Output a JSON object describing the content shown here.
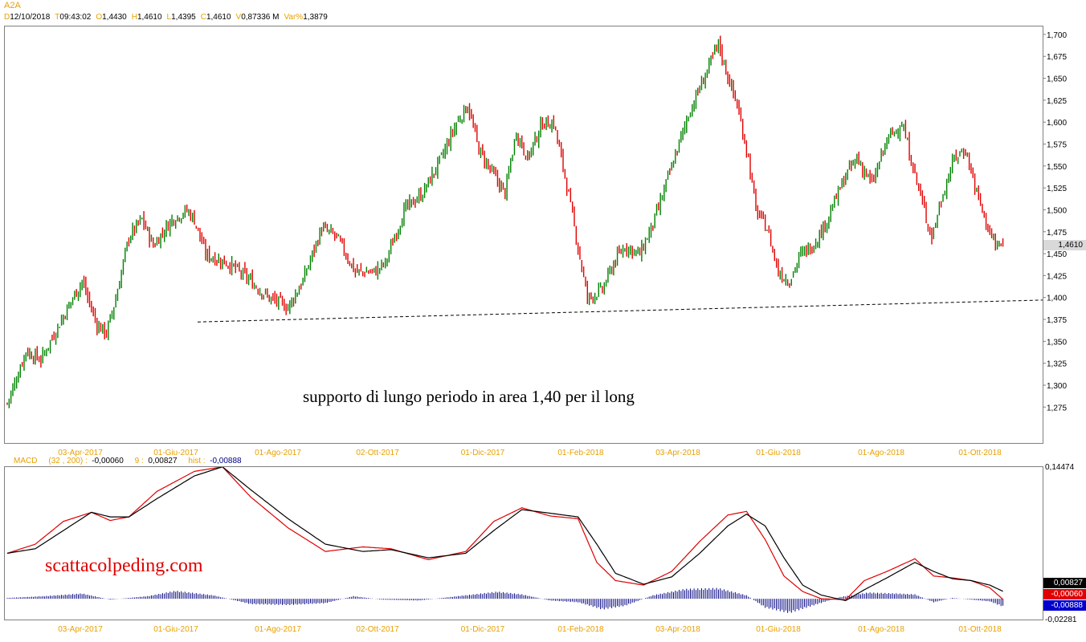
{
  "header": {
    "symbol": "A2A",
    "fields": [
      {
        "key": "D",
        "value": "12/10/2018"
      },
      {
        "key": "T",
        "value": "09:43:02"
      },
      {
        "key": "O",
        "value": "1,4430"
      },
      {
        "key": "H",
        "value": "1,4610"
      },
      {
        "key": "L",
        "value": "1,4395"
      },
      {
        "key": "C",
        "value": "1,4610"
      },
      {
        "key": "V",
        "value": "0,87336 M"
      },
      {
        "key": "Var%",
        "value": "1,3879"
      }
    ]
  },
  "macd_header": {
    "name": "MACD",
    "params": "(32 , 200) :",
    "macd_value": "-0,00060",
    "signal_label": "9 :",
    "signal_value": "0,00827",
    "hist_label": "hist :",
    "hist_value": "-0,00888"
  },
  "price_badge": "1,4610",
  "macd_badges": {
    "signal": "0,00827",
    "macd": "-0,00060",
    "hist": "-0,00888"
  },
  "annotation": "supporto di lungo periodo in area 1,40 per il long",
  "watermark": "scattacolpeding.com",
  "colors": {
    "up": "#008000",
    "down": "#e00000",
    "signal": "#000000",
    "macd": "#e00000",
    "hist": "#000080",
    "axis_label": "#e8a000"
  },
  "chart_data": [
    {
      "type": "candlestick",
      "title": "A2A",
      "x_tick_labels": [
        "03-Apr-2017",
        "01-Giu-2017",
        "01-Ago-2017",
        "02-Ott-2017",
        "01-Dic-2017",
        "01-Feb-2018",
        "03-Apr-2018",
        "01-Giu-2018",
        "01-Ago-2018",
        "01-Ott-2018"
      ],
      "y_tick_labels": [
        "1,700",
        "1,675",
        "1,650",
        "1,625",
        "1,600",
        "1,575",
        "1,550",
        "1,525",
        "1,500",
        "1,475",
        "1,450",
        "1,425",
        "1,400",
        "1,375",
        "1,350",
        "1,325",
        "1,300",
        "1,275"
      ],
      "ylim": [
        1.235,
        1.71
      ],
      "anchors_close": [
        [
          0,
          1.28
        ],
        [
          10,
          1.34
        ],
        [
          18,
          1.33
        ],
        [
          30,
          1.38
        ],
        [
          40,
          1.42
        ],
        [
          43,
          1.4
        ],
        [
          48,
          1.37
        ],
        [
          53,
          1.36
        ],
        [
          58,
          1.4
        ],
        [
          65,
          1.47
        ],
        [
          72,
          1.49
        ],
        [
          78,
          1.46
        ],
        [
          88,
          1.49
        ],
        [
          96,
          1.5
        ],
        [
          100,
          1.49
        ],
        [
          106,
          1.45
        ],
        [
          118,
          1.44
        ],
        [
          130,
          1.42
        ],
        [
          140,
          1.4
        ],
        [
          150,
          1.39
        ],
        [
          158,
          1.42
        ],
        [
          168,
          1.48
        ],
        [
          176,
          1.47
        ],
        [
          186,
          1.43
        ],
        [
          196,
          1.43
        ],
        [
          202,
          1.44
        ],
        [
          212,
          1.5
        ],
        [
          222,
          1.52
        ],
        [
          232,
          1.56
        ],
        [
          240,
          1.6
        ],
        [
          246,
          1.62
        ],
        [
          252,
          1.57
        ],
        [
          260,
          1.54
        ],
        [
          266,
          1.52
        ],
        [
          272,
          1.59
        ],
        [
          278,
          1.56
        ],
        [
          286,
          1.6
        ],
        [
          292,
          1.6
        ],
        [
          298,
          1.54
        ],
        [
          304,
          1.47
        ],
        [
          310,
          1.4
        ],
        [
          318,
          1.41
        ],
        [
          324,
          1.44
        ],
        [
          330,
          1.46
        ],
        [
          338,
          1.45
        ],
        [
          346,
          1.49
        ],
        [
          352,
          1.53
        ],
        [
          358,
          1.57
        ],
        [
          364,
          1.61
        ],
        [
          370,
          1.64
        ],
        [
          376,
          1.67
        ],
        [
          380,
          1.69
        ],
        [
          384,
          1.66
        ],
        [
          390,
          1.62
        ],
        [
          396,
          1.56
        ],
        [
          400,
          1.5
        ],
        [
          406,
          1.48
        ],
        [
          412,
          1.43
        ],
        [
          418,
          1.42
        ],
        [
          424,
          1.45
        ],
        [
          430,
          1.46
        ],
        [
          436,
          1.48
        ],
        [
          442,
          1.51
        ],
        [
          448,
          1.54
        ],
        [
          454,
          1.56
        ],
        [
          462,
          1.53
        ],
        [
          470,
          1.58
        ],
        [
          478,
          1.6
        ],
        [
          484,
          1.55
        ],
        [
          490,
          1.5
        ],
        [
          494,
          1.47
        ],
        [
          500,
          1.52
        ],
        [
          506,
          1.56
        ],
        [
          512,
          1.57
        ],
        [
          518,
          1.52
        ],
        [
          524,
          1.48
        ],
        [
          528,
          1.46
        ],
        [
          532,
          1.46
        ]
      ],
      "support_line": {
        "y_start": 1.373,
        "y_end": 1.398,
        "style": "dashed"
      },
      "last_price": 1.461
    },
    {
      "type": "line",
      "title": "MACD",
      "y_tick_labels": [
        "0,14474",
        "-0,02281"
      ],
      "ylim": [
        -0.02281,
        0.14474
      ],
      "series": [
        {
          "name": "signal",
          "anchors": [
            [
              0,
              0.05
            ],
            [
              15,
              0.055
            ],
            [
              30,
              0.075
            ],
            [
              45,
              0.095
            ],
            [
              55,
              0.09
            ],
            [
              65,
              0.09
            ],
            [
              80,
              0.11
            ],
            [
              100,
              0.135
            ],
            [
              115,
              0.145
            ],
            [
              130,
              0.12
            ],
            [
              150,
              0.088
            ],
            [
              170,
              0.06
            ],
            [
              190,
              0.052
            ],
            [
              205,
              0.054
            ],
            [
              225,
              0.045
            ],
            [
              245,
              0.05
            ],
            [
              260,
              0.075
            ],
            [
              275,
              0.098
            ],
            [
              290,
              0.094
            ],
            [
              305,
              0.09
            ],
            [
              315,
              0.06
            ],
            [
              325,
              0.028
            ],
            [
              340,
              0.016
            ],
            [
              355,
              0.024
            ],
            [
              370,
              0.05
            ],
            [
              385,
              0.08
            ],
            [
              395,
              0.093
            ],
            [
              405,
              0.08
            ],
            [
              415,
              0.045
            ],
            [
              425,
              0.015
            ],
            [
              435,
              0.004
            ],
            [
              448,
              -0.002
            ],
            [
              458,
              0.01
            ],
            [
              470,
              0.023
            ],
            [
              485,
              0.04
            ],
            [
              495,
              0.03
            ],
            [
              505,
              0.022
            ],
            [
              515,
              0.02
            ],
            [
              525,
              0.015
            ],
            [
              532,
              0.00827
            ]
          ]
        },
        {
          "name": "macd",
          "anchors": [
            [
              0,
              0.05
            ],
            [
              15,
              0.06
            ],
            [
              30,
              0.085
            ],
            [
              45,
              0.095
            ],
            [
              55,
              0.086
            ],
            [
              65,
              0.09
            ],
            [
              80,
              0.118
            ],
            [
              100,
              0.14
            ],
            [
              115,
              0.145
            ],
            [
              130,
              0.112
            ],
            [
              150,
              0.078
            ],
            [
              170,
              0.052
            ],
            [
              190,
              0.057
            ],
            [
              205,
              0.055
            ],
            [
              225,
              0.043
            ],
            [
              245,
              0.052
            ],
            [
              260,
              0.085
            ],
            [
              275,
              0.1
            ],
            [
              290,
              0.091
            ],
            [
              305,
              0.088
            ],
            [
              315,
              0.04
            ],
            [
              325,
              0.02
            ],
            [
              340,
              0.015
            ],
            [
              355,
              0.03
            ],
            [
              370,
              0.063
            ],
            [
              385,
              0.092
            ],
            [
              395,
              0.096
            ],
            [
              405,
              0.065
            ],
            [
              415,
              0.025
            ],
            [
              425,
              0.008
            ],
            [
              435,
              0.0
            ],
            [
              448,
              -0.001
            ],
            [
              458,
              0.02
            ],
            [
              470,
              0.03
            ],
            [
              485,
              0.044
            ],
            [
              495,
              0.025
            ],
            [
              505,
              0.023
            ],
            [
              515,
              0.02
            ],
            [
              525,
              0.012
            ],
            [
              532,
              -0.0006
            ]
          ]
        },
        {
          "name": "hist",
          "anchors": [
            [
              0,
              0.001
            ],
            [
              20,
              0.003
            ],
            [
              40,
              0.006
            ],
            [
              55,
              -0.001
            ],
            [
              75,
              0.003
            ],
            [
              90,
              0.009
            ],
            [
              110,
              0.004
            ],
            [
              130,
              -0.006
            ],
            [
              150,
              -0.007
            ],
            [
              170,
              -0.005
            ],
            [
              185,
              0.003
            ],
            [
              200,
              -0.001
            ],
            [
              220,
              -0.002
            ],
            [
              245,
              0.004
            ],
            [
              262,
              0.008
            ],
            [
              275,
              0.005
            ],
            [
              290,
              -0.002
            ],
            [
              305,
              -0.004
            ],
            [
              318,
              -0.012
            ],
            [
              330,
              -0.008
            ],
            [
              345,
              0.004
            ],
            [
              362,
              0.011
            ],
            [
              380,
              0.012
            ],
            [
              395,
              0.004
            ],
            [
              405,
              -0.01
            ],
            [
              418,
              -0.016
            ],
            [
              430,
              -0.008
            ],
            [
              445,
              0.002
            ],
            [
              460,
              0.007
            ],
            [
              475,
              0.006
            ],
            [
              485,
              0.005
            ],
            [
              495,
              -0.004
            ],
            [
              505,
              0.001
            ],
            [
              515,
              -0.001
            ],
            [
              525,
              -0.003
            ],
            [
              532,
              -0.00888
            ]
          ]
        }
      ]
    }
  ]
}
